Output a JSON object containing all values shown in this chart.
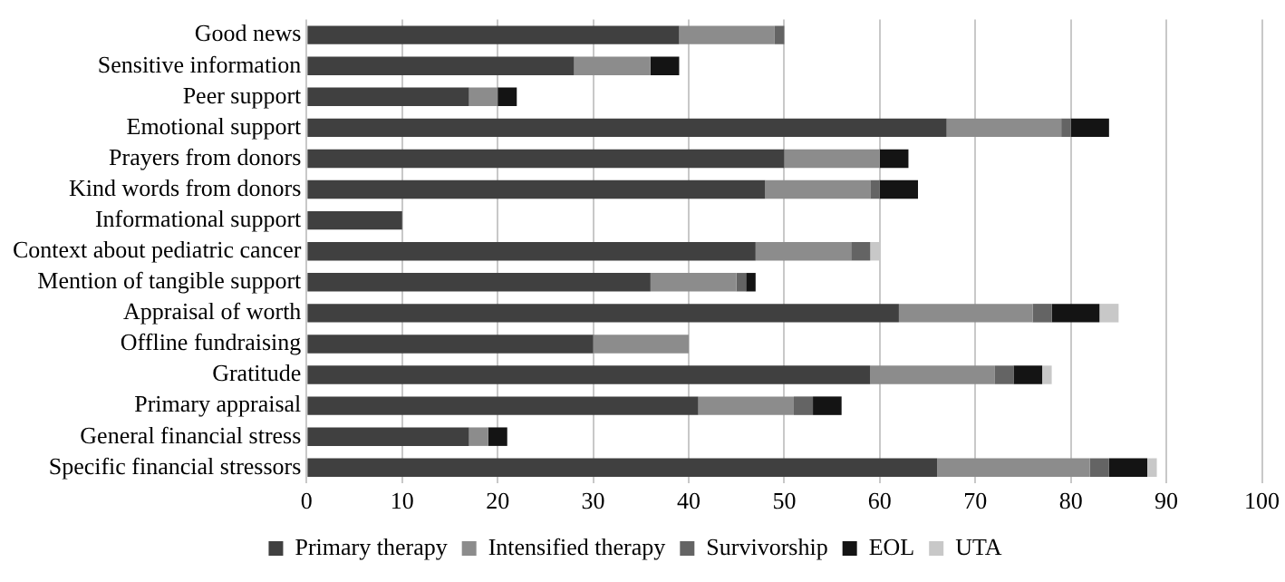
{
  "chart_data": {
    "type": "bar",
    "orientation": "horizontal",
    "stacked": true,
    "grid": "x",
    "legend": "bottom",
    "categories": [
      "Good news",
      "Sensitive information",
      "Peer support",
      "Emotional support",
      "Prayers from donors",
      "Kind words from donors",
      "Informational support",
      "Context about pediatric cancer",
      "Mention of tangible support",
      "Appraisal of worth",
      "Offline fundraising",
      "Gratitude",
      "Primary appraisal",
      "General financial stress",
      "Specific financial stressors"
    ],
    "series": [
      {
        "name": "Primary therapy",
        "color": "#404040",
        "values": [
          39,
          28,
          17,
          67,
          50,
          48,
          10,
          47,
          36,
          62,
          30,
          59,
          41,
          17,
          66
        ]
      },
      {
        "name": "Intensified therapy",
        "color": "#8c8c8c",
        "values": [
          10,
          8,
          3,
          12,
          10,
          11,
          0,
          10,
          9,
          14,
          10,
          13,
          10,
          2,
          16
        ]
      },
      {
        "name": "Survivorship",
        "color": "#646464",
        "values": [
          1,
          0,
          0,
          1,
          0,
          1,
          0,
          2,
          1,
          2,
          0,
          2,
          2,
          0,
          2
        ]
      },
      {
        "name": "EOL",
        "color": "#141414",
        "values": [
          0,
          3,
          2,
          4,
          3,
          4,
          0,
          0,
          1,
          5,
          0,
          3,
          3,
          2,
          4
        ]
      },
      {
        "name": "UTA",
        "color": "#c8c8c8",
        "values": [
          0,
          0,
          0,
          0,
          0,
          0,
          0,
          1,
          0,
          2,
          0,
          1,
          0,
          0,
          1
        ]
      }
    ],
    "xlim": [
      0,
      100
    ],
    "xticks": [
      0,
      10,
      20,
      30,
      40,
      50,
      60,
      70,
      80,
      90,
      100
    ]
  }
}
